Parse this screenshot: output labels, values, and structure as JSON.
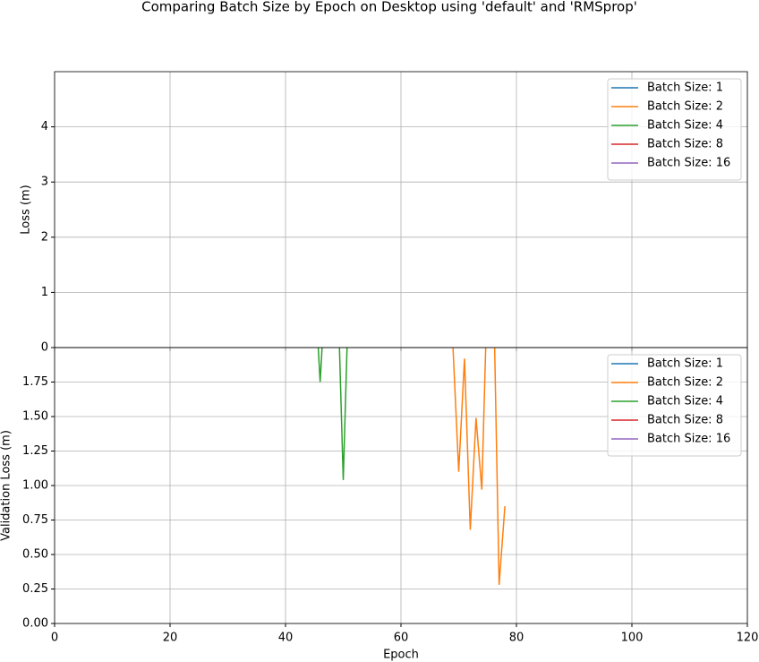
{
  "chart_data": [
    {
      "type": "line",
      "title": "Comparing Batch Size by Epoch on Desktop using 'default' and 'RMSprop'",
      "ylabel": "Loss (m)",
      "xlim": [
        0,
        120
      ],
      "xticks": [
        0,
        20,
        40,
        60,
        80,
        100,
        120
      ],
      "ylim": [
        0,
        5
      ],
      "yticks": [
        0,
        1,
        2,
        3,
        4
      ],
      "grid": true,
      "legend": "upper right",
      "series": [
        {
          "name": "Batch Size: 1",
          "color": "#1f77b4",
          "x": [],
          "values": []
        },
        {
          "name": "Batch Size: 2",
          "color": "#ff7f0e",
          "x": [],
          "values": []
        },
        {
          "name": "Batch Size: 4",
          "color": "#2ca02c",
          "x": [],
          "values": []
        },
        {
          "name": "Batch Size: 8",
          "color": "#d62728",
          "x": [],
          "values": []
        },
        {
          "name": "Batch Size: 16",
          "color": "#9467bd",
          "x": [],
          "values": []
        }
      ]
    },
    {
      "type": "line",
      "ylabel": "Validation Loss (m)",
      "xlabel": "Epoch",
      "xlim": [
        0,
        120
      ],
      "xticks": [
        0,
        20,
        40,
        60,
        80,
        100,
        120
      ],
      "ylim": [
        0,
        2
      ],
      "yticks": [
        {
          "value": 0,
          "label": "0.00"
        },
        {
          "value": 0.25,
          "label": "0.25"
        },
        {
          "value": 0.5,
          "label": "0.50"
        },
        {
          "value": 0.75,
          "label": "0.75"
        },
        {
          "value": 1,
          "label": "1.00"
        },
        1.25,
        {
          "value": 1.5,
          "label": "1.50"
        },
        1.75
      ],
      "grid": true,
      "legend": "upper right",
      "series": [
        {
          "name": "Batch Size: 1",
          "color": "#1f77b4",
          "x": [],
          "values": []
        },
        {
          "name": "Batch Size: 2",
          "color": "#ff7f0e",
          "x": [
            68,
            69,
            70,
            71,
            72,
            73,
            74,
            75,
            76,
            77,
            78
          ],
          "values": [
            2.5,
            2.01,
            1.1,
            1.92,
            0.68,
            1.49,
            0.97,
            2.5,
            2.5,
            0.28,
            0.85
          ]
        },
        {
          "name": "Batch Size: 4",
          "color": "#2ca02c",
          "x": [
            45,
            46,
            47,
            49,
            50,
            51
          ],
          "values": [
            2.5,
            1.75,
            2.5,
            2.5,
            1.04,
            2.5
          ]
        },
        {
          "name": "Batch Size: 8",
          "color": "#d62728",
          "x": [],
          "values": []
        },
        {
          "name": "Batch Size: 16",
          "color": "#9467bd",
          "x": [],
          "values": []
        }
      ]
    }
  ]
}
